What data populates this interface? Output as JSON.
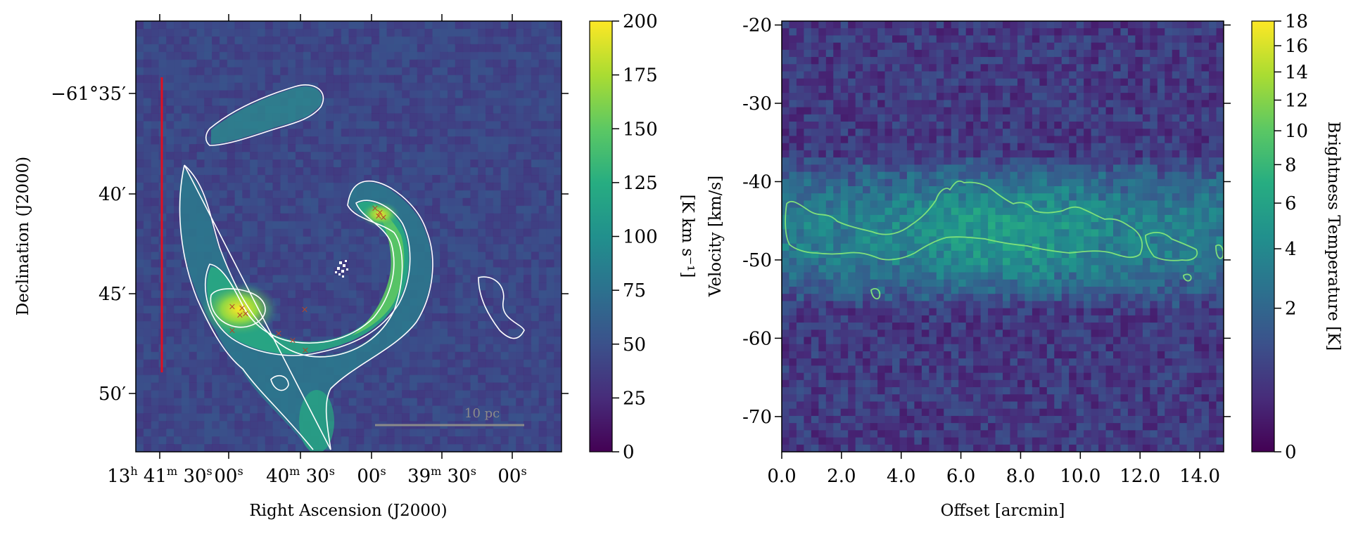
{
  "figure": {
    "colors": {
      "colormap": [
        "#440154",
        "#472c7a",
        "#3b518b",
        "#2c718e",
        "#21908d",
        "#27ad81",
        "#5cc863",
        "#aadc32",
        "#fde725"
      ],
      "contour_left": "#ffffff",
      "contour_right": "#7fe07a",
      "slice_line": "#e01020",
      "markers": "#b5452a",
      "scalebar": "#8a8a8a"
    }
  },
  "chart_data": [
    {
      "type": "heatmap",
      "title": "",
      "xlabel": "Right Ascension (J2000)",
      "ylabel": "Declination (J2000)",
      "x_ticks": [
        {
          "h": "13",
          "hu": "h",
          "m": "41",
          "mu": "m",
          "s": "30",
          "su": "s"
        },
        {
          "s": "00",
          "su": "s"
        },
        {
          "m": "40",
          "mu": "m",
          "s": "30",
          "su": "s"
        },
        {
          "s": "00",
          "su": "s"
        },
        {
          "m": "39",
          "mu": "m",
          "s": "30",
          "su": "s"
        },
        {
          "s": "00",
          "su": "s"
        }
      ],
      "y_ticks": [
        "−61°35′",
        "40′",
        "45′",
        "50′"
      ],
      "colorbar": {
        "label": "[K km s⁻¹]",
        "ticks": [
          "0",
          "25",
          "50",
          "75",
          "100",
          "125",
          "150",
          "175",
          "200"
        ],
        "range": [
          0,
          200
        ],
        "scale": "linear"
      },
      "scalebar_label": "10 pc",
      "grid": false,
      "contours": "white integrated-intensity contours",
      "markers": "red crosses along the ring"
    },
    {
      "type": "heatmap",
      "title": "",
      "xlabel": "Offset [arcmin]",
      "ylabel": "Velocity [km/s]",
      "x_ticks": [
        "0.0",
        "2.0",
        "4.0",
        "6.0",
        "8.0",
        "10.0",
        "12.0",
        "14.0"
      ],
      "y_ticks": [
        "-20",
        "-30",
        "-40",
        "-50",
        "-60",
        "-70"
      ],
      "xlim": [
        0,
        14.8
      ],
      "ylim": [
        -74.5,
        -19.5
      ],
      "emission_band_velocity": [
        -56,
        -37
      ],
      "colorbar": {
        "label": "Brightness Temperature [K]",
        "ticks": [
          "0",
          "2",
          "4",
          "6",
          "8",
          "10",
          "12",
          "14",
          "16",
          "18"
        ],
        "range": [
          0,
          18
        ],
        "scale": "nonlinear (sqrt-like)"
      },
      "grid": false,
      "contours": "light-green contour around the emission band"
    }
  ]
}
